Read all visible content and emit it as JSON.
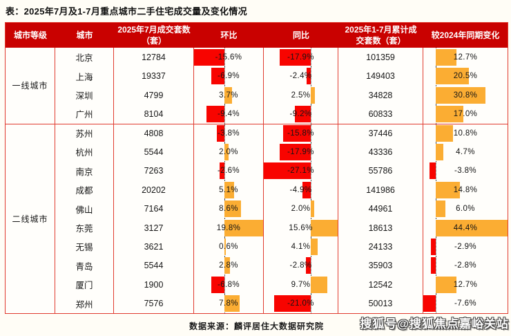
{
  "title": "表：2025年7月及1-7月重点城市二手住宅成交量及变化情况",
  "chart_data": {
    "type": "table",
    "title": "2025年7月及1-7月重点城市二手住宅成交量及变化情况",
    "columns": [
      "城市等级",
      "城市",
      "2025年7月成交套数（套）",
      "环比",
      "同比",
      "2025年1-7月累计成交套数（套）",
      "较2024年同期变化"
    ],
    "bar_columns": [
      "环比",
      "同比",
      "较2024年同期变化"
    ],
    "bar_style": "in-cell diverging bars: red = negative, orange = positive, dotted zero axis",
    "rows": [
      [
        "一线城市",
        "北京",
        "12784",
        -15.6,
        -17.9,
        "101359",
        12.7
      ],
      [
        "一线城市",
        "上海",
        "19337",
        -6.9,
        -2.4,
        "149403",
        20.5
      ],
      [
        "一线城市",
        "深圳",
        "4799",
        3.7,
        2.5,
        "34828",
        30.8
      ],
      [
        "一线城市",
        "广州",
        "8104",
        -9.4,
        -9.2,
        "60833",
        17.0
      ],
      [
        "二线城市",
        "苏州",
        "4808",
        -3.8,
        -15.8,
        "37446",
        10.8
      ],
      [
        "二线城市",
        "杭州",
        "5544",
        2.0,
        -17.9,
        "43336",
        4.7
      ],
      [
        "二线城市",
        "南京",
        "7263",
        -2.6,
        -27.1,
        "55786",
        -3.8
      ],
      [
        "二线城市",
        "成都",
        "20202",
        5.1,
        -4.9,
        "141986",
        14.8
      ],
      [
        "二线城市",
        "佛山",
        "7164",
        8.6,
        2.0,
        "44961",
        6.0
      ],
      [
        "二线城市",
        "东莞",
        "3127",
        19.8,
        15.6,
        "18613",
        44.4
      ],
      [
        "二线城市",
        "无锡",
        "3621",
        0.6,
        4.1,
        "24133",
        -2.9
      ],
      [
        "二线城市",
        "青岛",
        "5544",
        2.8,
        -2.8,
        "35903",
        -2.8
      ],
      [
        "二线城市",
        "厦门",
        "1900",
        -6.8,
        9.7,
        "12542",
        12.7
      ],
      [
        "二线城市",
        "郑州",
        "7576",
        7.8,
        -21.0,
        "50013",
        -7.6
      ]
    ]
  },
  "footer": {
    "source": "数据来源：麟评居住大数据研究院"
  },
  "watermark": "搜狐号@搜狐焦点嘉峪关站",
  "colors": {
    "bar_negative": "#f80400",
    "bar_positive": "#fbad33",
    "header_bg": "#c90100",
    "grid_line": "#e03a2e"
  }
}
